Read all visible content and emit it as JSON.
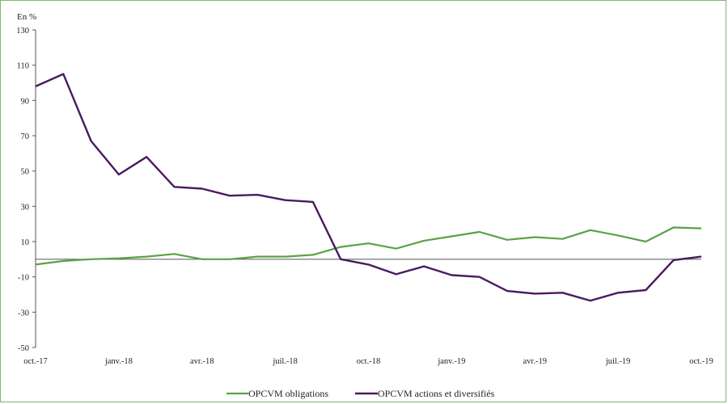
{
  "chart_data": {
    "type": "line",
    "unit_label": "En %",
    "x": [
      "oct.-17",
      "nov.-17",
      "déc.-17",
      "janv.-18",
      "févr.-18",
      "mars-18",
      "avr.-18",
      "mai-18",
      "juin-18",
      "juil.-18",
      "août-18",
      "sept.-18",
      "oct.-18",
      "nov.-18",
      "déc.-18",
      "janv.-19",
      "févr.-19",
      "mars-19",
      "avr.-19",
      "mai-19",
      "juin-19",
      "juil.-19",
      "août-19",
      "sept.-19",
      "oct.-19"
    ],
    "x_tick_labels": [
      "oct.-17",
      "janv.-18",
      "avr.-18",
      "juil.-18",
      "oct.-18",
      "janv.-19",
      "avr.-19",
      "juil.-19",
      "oct.-19"
    ],
    "x_tick_indices": [
      0,
      3,
      6,
      9,
      12,
      15,
      18,
      21,
      24
    ],
    "ylim": [
      -50,
      130
    ],
    "y_ticks": [
      -50,
      -30,
      -10,
      10,
      30,
      50,
      70,
      90,
      110,
      130
    ],
    "series": [
      {
        "name": "OPCVM obligations",
        "color": "#5aa246",
        "values": [
          -3,
          -1,
          0,
          0.5,
          1.5,
          3,
          0,
          0,
          1.5,
          1.5,
          2.5,
          7,
          9,
          6,
          10.5,
          13,
          15.5,
          11,
          12.5,
          11.5,
          16.5,
          13.5,
          10,
          18,
          17.5
        ]
      },
      {
        "name": "OPCVM actions et diversifiés",
        "color": "#4a1a5e",
        "values": [
          98,
          105,
          67,
          48,
          58,
          41,
          40,
          36,
          36.5,
          33.5,
          32.5,
          0,
          -3,
          -8.5,
          -4,
          -9,
          -10,
          -18,
          -19.5,
          -19,
          -23.5,
          -19,
          -17.5,
          -0.5,
          1.5
        ]
      }
    ],
    "legend_position": "bottom-center",
    "grid": false
  }
}
